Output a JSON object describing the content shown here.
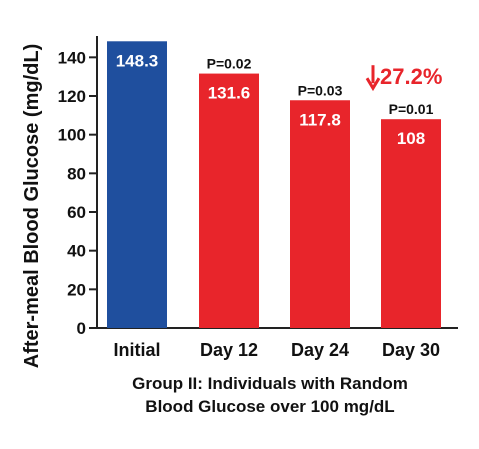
{
  "chart_data": {
    "type": "bar",
    "title": "",
    "xlabel": "Group II: Individuals with Random Blood Glucose over 100 mg/dL",
    "xlabel_lines": [
      "Group II: Individuals with Random",
      "Blood Glucose over 100 mg/dL"
    ],
    "ylabel": "After-meal Blood Glucose (mg/dL)",
    "ylim": [
      0,
      150
    ],
    "yticks": [
      0,
      20,
      40,
      60,
      80,
      100,
      120,
      140
    ],
    "categories": [
      "Initial",
      "Day 12",
      "Day 24",
      "Day 30"
    ],
    "values": [
      148.3,
      131.6,
      117.8,
      108
    ],
    "value_labels": [
      "148.3",
      "131.6",
      "117.8",
      "108"
    ],
    "p_values": [
      "",
      "P=0.02",
      "P=0.03",
      "P=0.01"
    ],
    "annotation": {
      "text": "27.2%",
      "arrow": "down-arrow",
      "category_index": 3
    },
    "colors": {
      "baseline_bar": "#1f4f9e",
      "treatment_bar": "#e8252b",
      "value_label": "#ffffff",
      "p_value": "#111111",
      "annotation": "#e8252b",
      "axis": "#222222"
    },
    "grid": false,
    "legend": "none"
  }
}
